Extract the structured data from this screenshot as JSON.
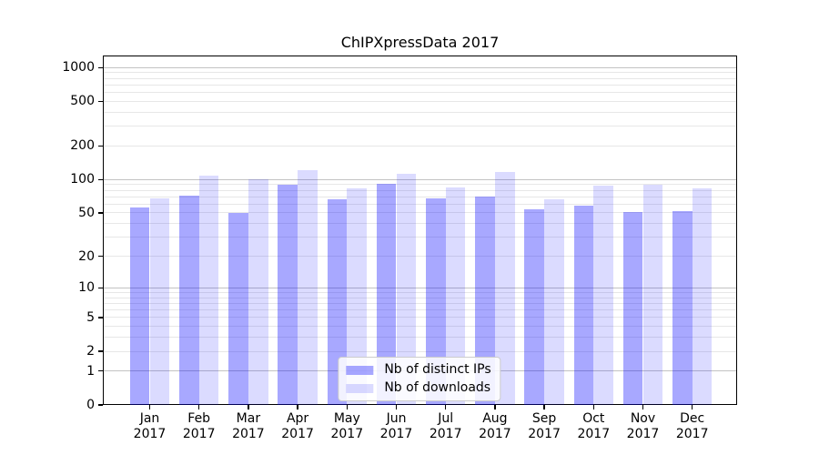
{
  "title": "ChIPXpressData 2017",
  "chart_data": {
    "type": "bar",
    "title": "ChIPXpressData 2017",
    "categories": [
      "Jan 2017",
      "Feb 2017",
      "Mar 2017",
      "Apr 2017",
      "May 2017",
      "Jun 2017",
      "Jul 2017",
      "Aug 2017",
      "Sep 2017",
      "Oct 2017",
      "Nov 2017",
      "Dec 2017"
    ],
    "months": [
      "Jan",
      "Feb",
      "Mar",
      "Apr",
      "May",
      "Jun",
      "Jul",
      "Aug",
      "Sep",
      "Oct",
      "Nov",
      "Dec"
    ],
    "year": "2017",
    "series": [
      {
        "name": "Nb of distinct IPs",
        "color": "rgba(0,0,255,0.34)",
        "values": [
          56,
          72,
          50,
          90,
          67,
          92,
          68,
          70,
          54,
          58,
          51,
          52
        ]
      },
      {
        "name": "Nb of downloads",
        "color": "rgba(0,0,255,0.14)",
        "values": [
          68,
          108,
          100,
          122,
          83,
          112,
          85,
          118,
          66,
          88,
          90,
          83
        ]
      }
    ],
    "yscale": "log1p",
    "y_ticks": [
      0,
      1,
      2,
      5,
      10,
      20,
      50,
      100,
      200,
      500,
      1000
    ],
    "y_tick_labels": [
      "0",
      "1",
      "2",
      "5",
      "10",
      "20",
      "50",
      "100",
      "200",
      "500",
      "1000"
    ],
    "y_major_gridlines": [
      1,
      10,
      100,
      1000
    ],
    "y_top_value": 1280,
    "grid": "both",
    "legend_position": "lower center",
    "colors": {
      "bar_distinct_ips": "rgba(0,0,255,0.34)",
      "bar_downloads": "rgba(0,0,255,0.14)",
      "major_grid": "#c3c3c3",
      "minor_grid": "#e7e7e7",
      "axis": "#000000"
    }
  }
}
